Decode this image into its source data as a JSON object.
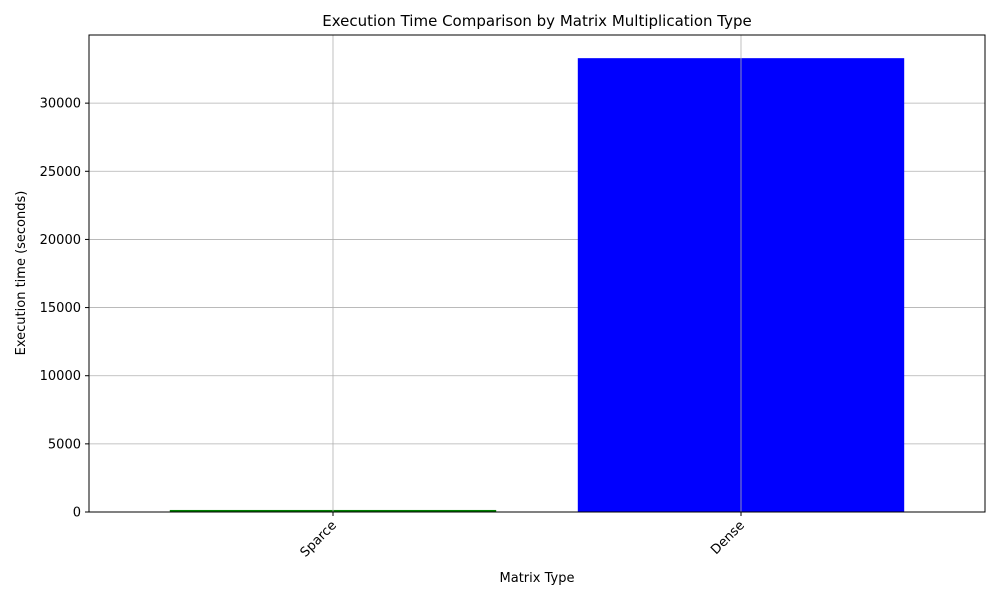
{
  "chart_data": {
    "type": "bar",
    "title": "Execution Time Comparison by Matrix Multiplication Type",
    "xlabel": "Matrix Type",
    "ylabel": "Execution time (seconds)",
    "categories": [
      "Sparce",
      "Dense"
    ],
    "values": [
      150,
      33300
    ],
    "colors": [
      "#008000",
      "#0000ff"
    ],
    "ylim": [
      0,
      35000
    ],
    "yticks": [
      0,
      5000,
      10000,
      15000,
      20000,
      25000,
      30000
    ],
    "ytick_labels": [
      "0",
      "5000",
      "10000",
      "15000",
      "20000",
      "25000",
      "30000"
    ],
    "grid": true,
    "xtick_rotation_deg": 45
  }
}
